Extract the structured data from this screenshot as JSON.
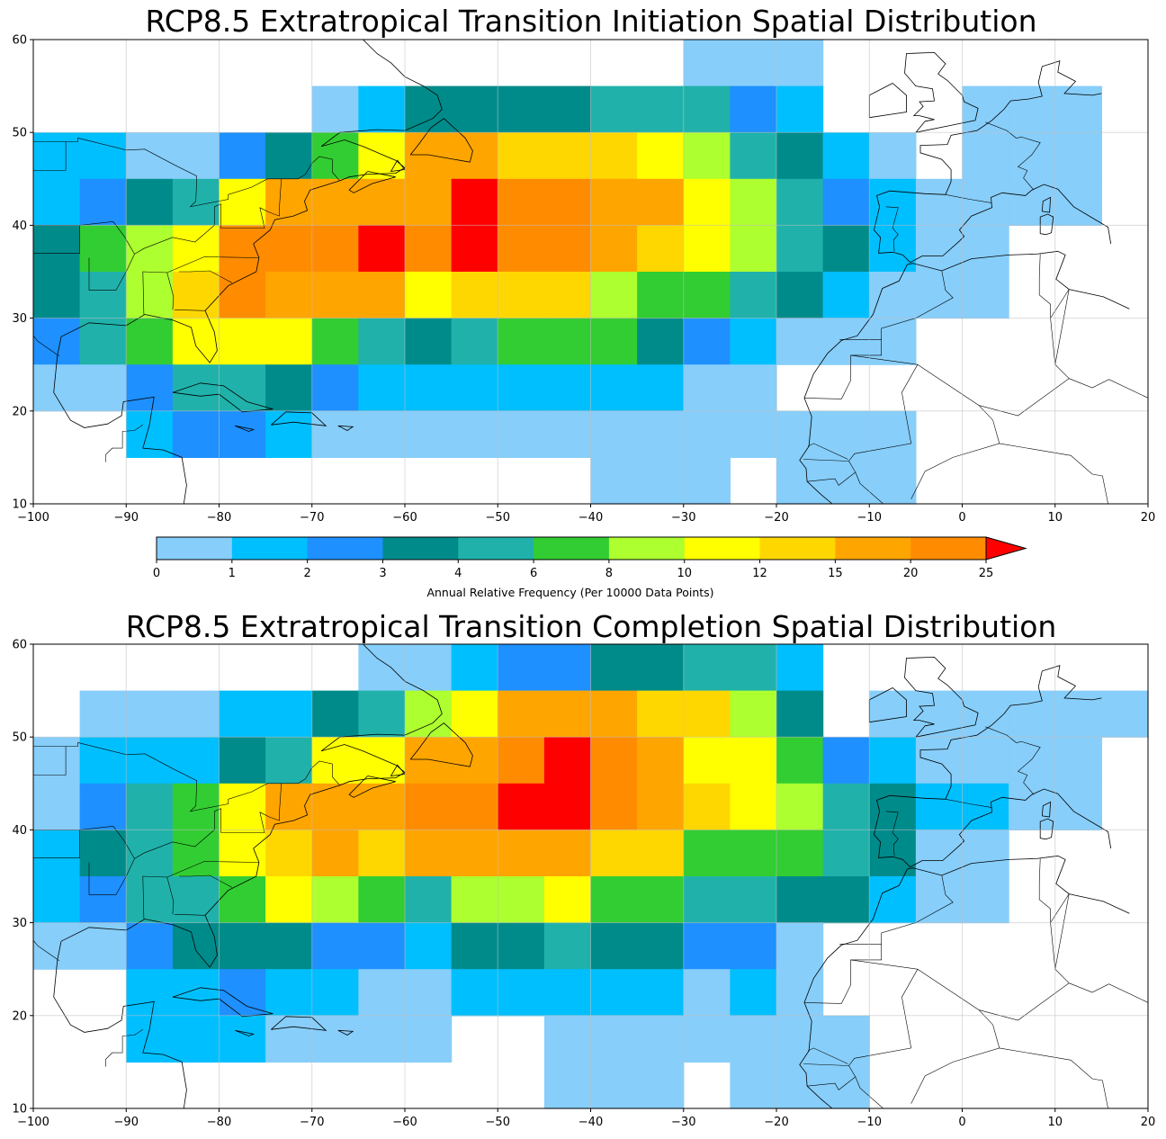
{
  "colorbar": {
    "label": "Annual Relative Frequency (Per 10000 Data Points)",
    "bounds": [
      0,
      1,
      2,
      3,
      4,
      6,
      8,
      10,
      12,
      15,
      20,
      25
    ],
    "colors": [
      "#87cefa",
      "#00bfff",
      "#1e90ff",
      "#008b8b",
      "#20b2aa",
      "#32cd32",
      "#adff2f",
      "#ffff00",
      "#ffd700",
      "#ffa500",
      "#ff8c00"
    ],
    "extend_color": "#ff0000"
  },
  "chart_data": [
    {
      "type": "heatmap",
      "title": "RCP8.5 Extratropical Transition Initiation Spatial Distribution",
      "xlim": [
        -100,
        20
      ],
      "ylim": [
        10,
        60
      ],
      "xticks": [
        -100,
        -90,
        -80,
        -70,
        -60,
        -50,
        -40,
        -30,
        -20,
        -10,
        0,
        10,
        20
      ],
      "yticks": [
        10,
        20,
        30,
        40,
        50,
        60
      ],
      "grid": true,
      "cell_size_deg": 5,
      "rows_lat_bottom": [
        55,
        50,
        45,
        40,
        35,
        30,
        25,
        20,
        15,
        10
      ],
      "cols_lon_left": [
        -100,
        -95,
        -90,
        -85,
        -80,
        -75,
        -70,
        -65,
        -60,
        -55,
        -50,
        -45,
        -40,
        -35,
        -30,
        -25,
        -20,
        -15,
        -10,
        -5,
        0,
        5,
        10,
        15
      ],
      "values": [
        [
          null,
          null,
          null,
          null,
          null,
          null,
          null,
          null,
          null,
          null,
          null,
          null,
          null,
          null,
          0.5,
          0.5,
          0.5,
          null,
          null,
          null,
          null,
          null,
          null,
          null
        ],
        [
          null,
          null,
          null,
          null,
          null,
          null,
          0.5,
          1.5,
          3.5,
          3.5,
          3.5,
          3.5,
          5,
          5,
          5,
          2.5,
          1.5,
          null,
          null,
          null,
          0.5,
          0.5,
          0.5,
          null
        ],
        [
          1.5,
          1.5,
          0.5,
          0.5,
          2.5,
          3.5,
          7,
          11,
          17,
          17,
          13.5,
          13.5,
          13.5,
          11,
          9,
          5,
          3.5,
          1.5,
          0.5,
          null,
          0.5,
          0.5,
          0.5,
          null
        ],
        [
          1.5,
          2.5,
          3.5,
          5,
          11,
          17,
          17,
          17,
          17,
          30,
          22,
          22,
          17,
          17,
          11,
          9,
          5,
          2.5,
          1.5,
          0.5,
          0.5,
          0.5,
          0.5,
          null
        ],
        [
          3.5,
          7,
          9,
          11,
          22,
          22,
          22,
          30,
          22,
          30,
          22,
          22,
          17,
          13.5,
          11,
          9,
          5,
          3.5,
          1.5,
          0.5,
          0.5,
          null,
          null,
          null
        ],
        [
          3.5,
          5,
          9,
          13.5,
          22,
          17,
          17,
          17,
          11,
          13.5,
          13.5,
          13.5,
          9,
          7,
          7,
          5,
          3.5,
          1.5,
          0.5,
          0.5,
          0.5,
          null,
          null,
          null
        ],
        [
          2.5,
          5,
          7,
          11,
          11,
          11,
          7,
          5,
          3.5,
          5,
          7,
          7,
          7,
          3.5,
          2.5,
          1.5,
          0.5,
          0.5,
          0.5,
          null,
          null,
          null,
          null,
          null
        ],
        [
          0.5,
          0.5,
          2.5,
          5,
          5,
          3.5,
          2.5,
          1.5,
          1.5,
          1.5,
          1.5,
          1.5,
          1.5,
          1.5,
          0.5,
          0.5,
          null,
          null,
          null,
          null,
          null,
          null,
          null,
          null
        ],
        [
          null,
          null,
          1.5,
          2.5,
          2.5,
          1.5,
          0.5,
          0.5,
          0.5,
          0.5,
          0.5,
          0.5,
          0.5,
          0.5,
          0.5,
          0.5,
          0.5,
          0.5,
          0.5,
          null,
          null,
          null,
          null,
          null
        ],
        [
          null,
          null,
          null,
          null,
          null,
          null,
          null,
          null,
          null,
          null,
          null,
          null,
          0.5,
          0.5,
          0.5,
          null,
          0.5,
          0.5,
          0.5,
          null,
          null,
          null,
          null,
          null
        ]
      ]
    },
    {
      "type": "heatmap",
      "title": "RCP8.5 Extratropical Transition Completion Spatial Distribution",
      "xlim": [
        -100,
        20
      ],
      "ylim": [
        10,
        60
      ],
      "xticks": [
        -100,
        -90,
        -80,
        -70,
        -60,
        -50,
        -40,
        -30,
        -20,
        -10,
        0,
        10,
        20
      ],
      "yticks": [
        10,
        20,
        30,
        40,
        50,
        60
      ],
      "grid": true,
      "cell_size_deg": 5,
      "rows_lat_bottom": [
        55,
        50,
        45,
        40,
        35,
        30,
        25,
        20,
        15,
        10
      ],
      "cols_lon_left": [
        -100,
        -95,
        -90,
        -85,
        -80,
        -75,
        -70,
        -65,
        -60,
        -55,
        -50,
        -45,
        -40,
        -35,
        -30,
        -25,
        -20,
        -15,
        -10,
        -5,
        0,
        5,
        10,
        15
      ],
      "values": [
        [
          null,
          null,
          null,
          null,
          null,
          null,
          null,
          0.5,
          0.5,
          1.5,
          2.5,
          2.5,
          3.5,
          3.5,
          5,
          5,
          1.5,
          null,
          null,
          null,
          null,
          null,
          null,
          null
        ],
        [
          null,
          0.5,
          0.5,
          0.5,
          1.5,
          1.5,
          3.5,
          5,
          9,
          11,
          17,
          17,
          17,
          13.5,
          13.5,
          9,
          3.5,
          null,
          0.5,
          0.5,
          0.5,
          0.5,
          0.5,
          0.5
        ],
        [
          0.5,
          1.5,
          1.5,
          1.5,
          3.5,
          5,
          11,
          11,
          17,
          17,
          22,
          30,
          22,
          17,
          11,
          11,
          7,
          2.5,
          1.5,
          0.5,
          0.5,
          0.5,
          0.5,
          null
        ],
        [
          0.5,
          2.5,
          5,
          7,
          11,
          17,
          17,
          17,
          22,
          22,
          30,
          30,
          22,
          17,
          13.5,
          11,
          9,
          5,
          3.5,
          1.5,
          1.5,
          0.5,
          0.5,
          null
        ],
        [
          1.5,
          3.5,
          5,
          7,
          11,
          13.5,
          17,
          13.5,
          17,
          17,
          17,
          17,
          13.5,
          13.5,
          7,
          7,
          7,
          5,
          3.5,
          0.5,
          0.5,
          null,
          null,
          null
        ],
        [
          1.5,
          2.5,
          5,
          5,
          7,
          11,
          9,
          7,
          5,
          9,
          9,
          11,
          7,
          7,
          5,
          5,
          3.5,
          3.5,
          1.5,
          0.5,
          0.5,
          null,
          null,
          null
        ],
        [
          0.5,
          0.5,
          2.5,
          3.5,
          3.5,
          3.5,
          2.5,
          2.5,
          1.5,
          3.5,
          3.5,
          5,
          3.5,
          3.5,
          2.5,
          2.5,
          0.5,
          null,
          null,
          null,
          null,
          null,
          null,
          null
        ],
        [
          null,
          null,
          1.5,
          1.5,
          2.5,
          1.5,
          1.5,
          0.5,
          0.5,
          1.5,
          1.5,
          1.5,
          1.5,
          1.5,
          0.5,
          1.5,
          0.5,
          null,
          null,
          null,
          null,
          null,
          null,
          null
        ],
        [
          null,
          null,
          1.5,
          1.5,
          1.5,
          0.5,
          0.5,
          0.5,
          0.5,
          null,
          null,
          0.5,
          0.5,
          0.5,
          0.5,
          0.5,
          0.5,
          0.5,
          null,
          null,
          null,
          null,
          null,
          null
        ],
        [
          null,
          null,
          null,
          null,
          null,
          null,
          null,
          null,
          null,
          null,
          null,
          0.5,
          0.5,
          0.5,
          null,
          0.5,
          0.5,
          0.5,
          null,
          null,
          null,
          null,
          null,
          null
        ]
      ]
    }
  ]
}
